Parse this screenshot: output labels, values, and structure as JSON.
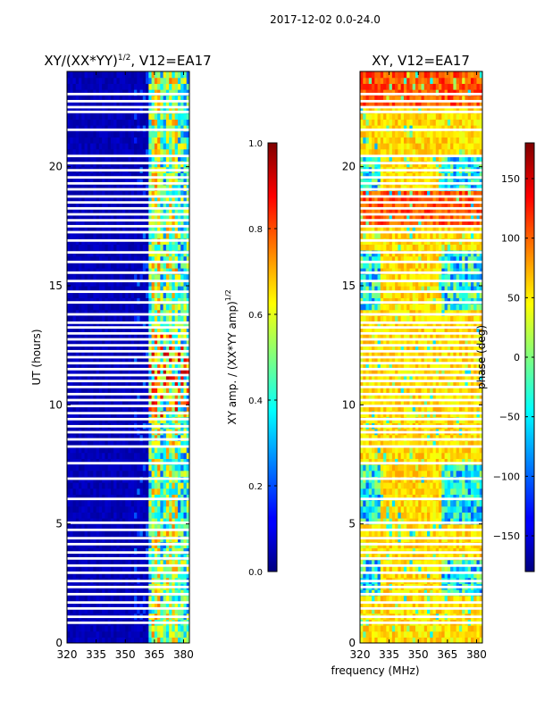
{
  "suptitle": "2017-12-02 0.0-24.0",
  "shared_xlabel": "frequency (MHz)",
  "chart_data": [
    {
      "type": "heatmap",
      "title_main": "XY/(XX*YY)",
      "title_sup": "1/2",
      "title_tail": ", V12=EA17",
      "ylabel": "UT (hours)",
      "xlim": [
        320,
        383
      ],
      "ylim": [
        0,
        24
      ],
      "x_ticks": [
        320,
        335,
        350,
        365,
        380
      ],
      "y_ticks": [
        0,
        5,
        10,
        15,
        20
      ],
      "colorbar": {
        "label_main": "XY amp. / (XX*YY amp)",
        "label_sup": "1/2",
        "range": [
          0.0,
          1.0
        ],
        "ticks": [
          "0.0",
          "0.2",
          "0.4",
          "0.6",
          "0.8",
          "1.0"
        ],
        "tick_values": [
          0.0,
          0.2,
          0.4,
          0.6,
          0.8,
          1.0
        ]
      }
    },
    {
      "type": "heatmap",
      "title_main": "XY, V12=EA17",
      "xlim": [
        320,
        383
      ],
      "ylim": [
        0,
        24
      ],
      "x_ticks": [
        320,
        335,
        350,
        365,
        380
      ],
      "y_ticks": [
        0,
        5,
        10,
        15,
        20
      ],
      "colorbar": {
        "label_main": "phase (deg)",
        "range": [
          -180,
          180
        ],
        "ticks": [
          "150",
          "100",
          "50",
          "0",
          "−50",
          "−100",
          "−150"
        ],
        "tick_values": [
          150,
          100,
          50,
          0,
          -50,
          -100,
          -150
        ]
      }
    }
  ],
  "flagged_hours": [
    0.85,
    1.1,
    1.45,
    1.7,
    2.05,
    2.35,
    2.6,
    2.95,
    3.25,
    3.55,
    3.8,
    4.15,
    4.4,
    4.75,
    5.05,
    6.05,
    6.9,
    7.55,
    8.25,
    8.55,
    8.85,
    9.1,
    9.4,
    9.65,
    9.95,
    10.2,
    10.45,
    10.75,
    11.0,
    11.25,
    11.5,
    11.75,
    12.0,
    12.25,
    12.5,
    12.75,
    13.0,
    13.25,
    13.45,
    13.8,
    14.3,
    14.75,
    15.2,
    15.55,
    16.0,
    16.4,
    16.9,
    17.25,
    17.5,
    17.75,
    18.0,
    18.25,
    18.5,
    18.75,
    19.05,
    19.3,
    19.55,
    19.85,
    20.15,
    20.45,
    21.55,
    22.3,
    22.5,
    22.75,
    23.05
  ]
}
